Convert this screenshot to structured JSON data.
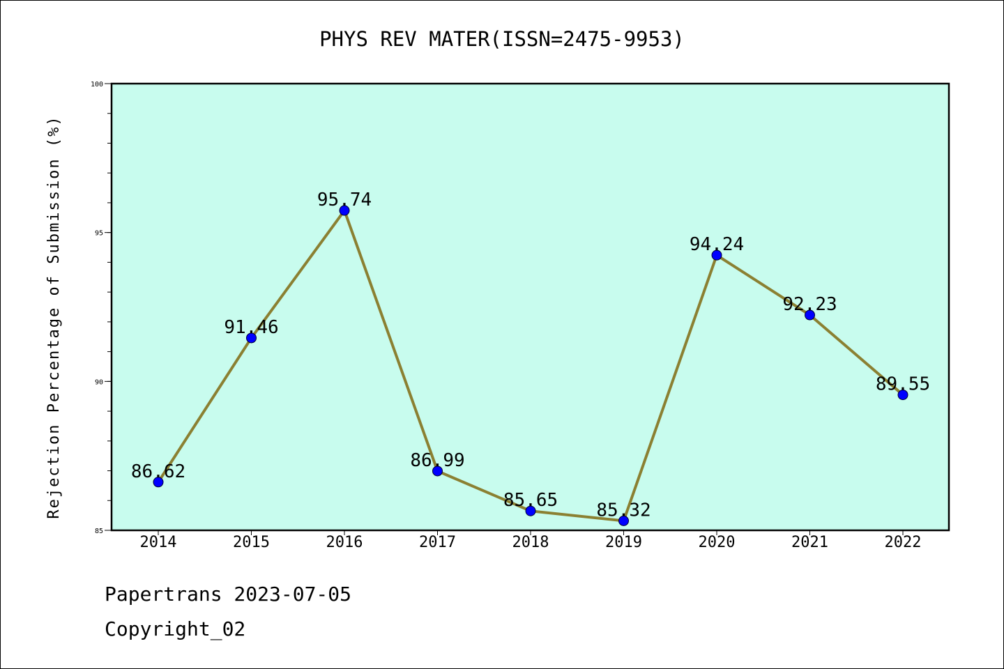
{
  "chart_data": {
    "type": "line",
    "title": "PHYS REV MATER(ISSN=2475-9953)",
    "xlabel": "",
    "ylabel": "Rejection Percentage of Submission (%)",
    "categories": [
      "2014",
      "2015",
      "2016",
      "2017",
      "2018",
      "2019",
      "2020",
      "2021",
      "2022"
    ],
    "values": [
      86.62,
      91.46,
      95.74,
      86.99,
      85.65,
      85.32,
      94.24,
      92.23,
      89.55
    ],
    "value_labels": [
      "86.62",
      "91.46",
      "95.74",
      "86.99",
      "85.65",
      "85.32",
      "94.24",
      "92.23",
      "89.55"
    ],
    "ylim": [
      85,
      100
    ],
    "yticks": [
      "85",
      "90",
      "95",
      "100"
    ],
    "grid": false,
    "colors": {
      "background": "#c8fcee",
      "line": "#8b8032",
      "marker": "#0000ff"
    }
  },
  "footer": {
    "line1": "Papertrans 2023-07-05",
    "line2": "Copyright_02"
  }
}
